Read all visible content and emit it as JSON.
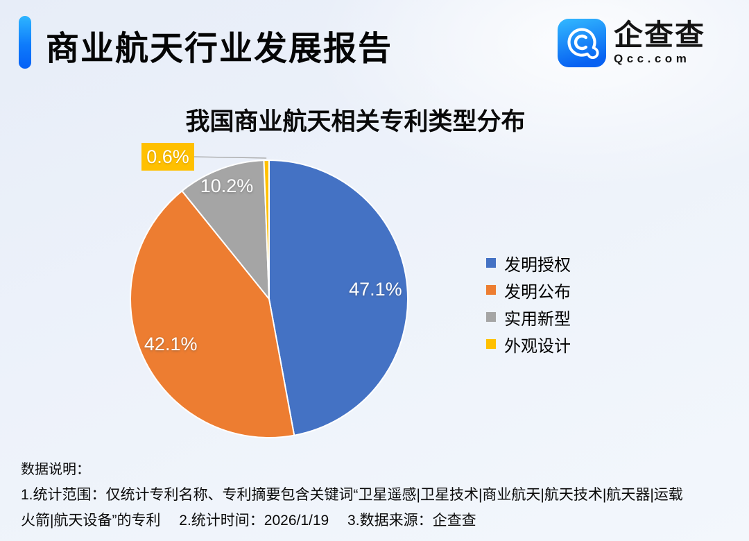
{
  "header": {
    "title": "商业航天行业发展报告",
    "logo": {
      "name": "企查查",
      "domain": "Qcc.com"
    }
  },
  "chart": {
    "title": "我国商业航天相关专利类型分布"
  },
  "chart_data": {
    "type": "pie",
    "title": "我国商业航天相关专利类型分布",
    "categories": [
      "发明授权",
      "发明公布",
      "实用新型",
      "外观设计"
    ],
    "values": [
      47.1,
      42.1,
      10.2,
      0.6
    ],
    "value_labels": [
      "47.1%",
      "42.1%",
      "10.2%",
      "0.6%"
    ],
    "colors": [
      "#4472C4",
      "#ED7D31",
      "#A5A5A5",
      "#FFC000"
    ],
    "start_angle_deg": 0,
    "direction": "clockwise",
    "legend_position": "right",
    "label_style": "percent labels inside slices; smallest slice uses external yellow callout with leader line"
  },
  "footer": {
    "heading": "数据说明：",
    "lines": [
      "1.统计范围：仅统计专利名称、专利摘要包含关键词“卫星遥感|卫星技术|商业航天|航天技术|航天器|运载",
      "火箭|航天设备”的专利　 2.统计时间：2026/1/19　 3.数据来源：企查查"
    ]
  }
}
